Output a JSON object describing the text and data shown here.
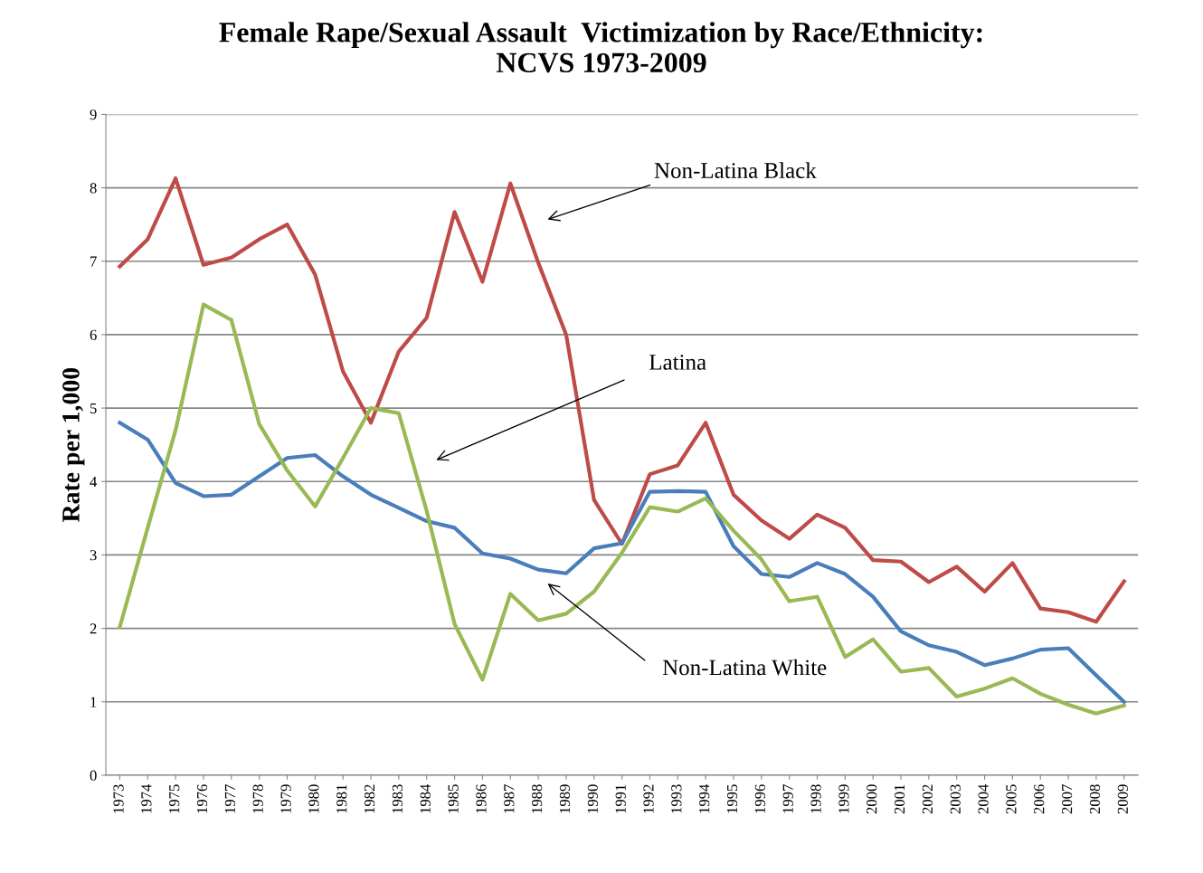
{
  "chart_data": {
    "type": "line",
    "title": "Female Rape/Sexual Assault  Victimization by Race/Ethnicity:\nNCVS 1973-2009",
    "ylabel": "Rate per 1,000",
    "categories": [
      "1973",
      "1974",
      "1975",
      "1976",
      "1977",
      "1978",
      "1979",
      "1980",
      "1981",
      "1982",
      "1983",
      "1984",
      "1985",
      "1986",
      "1987",
      "1988",
      "1989",
      "1990",
      "1991",
      "1992",
      "1993",
      "1994",
      "1995",
      "1996",
      "1997",
      "1998",
      "1999",
      "2000",
      "2001",
      "2002",
      "2003",
      "2004",
      "2005",
      "2006",
      "2007",
      "2008",
      "2009"
    ],
    "series": [
      {
        "color": "#be4b48",
        "values": [
          6.93,
          7.3,
          8.13,
          6.95,
          7.05,
          7.3,
          7.5,
          6.82,
          5.5,
          4.8,
          5.77,
          6.23,
          7.67,
          6.72,
          8.06,
          6.98,
          6.0,
          3.75,
          3.15,
          4.1,
          4.22,
          4.8,
          3.82,
          3.47,
          3.22,
          3.55,
          3.37,
          2.93,
          2.91,
          2.63,
          2.84,
          2.5,
          2.89,
          2.27,
          2.22,
          2.09,
          2.64
        ]
      },
      {
        "color": "#4a7ebb",
        "values": [
          4.8,
          4.57,
          3.98,
          3.8,
          3.82,
          4.07,
          4.32,
          4.36,
          4.07,
          3.82,
          3.64,
          3.46,
          3.37,
          3.02,
          2.95,
          2.8,
          2.75,
          3.09,
          3.16,
          3.86,
          3.87,
          3.86,
          3.12,
          2.74,
          2.7,
          2.89,
          2.74,
          2.43,
          1.96,
          1.77,
          1.68,
          1.5,
          1.59,
          1.71,
          1.73,
          1.36,
          1.0
        ]
      },
      {
        "color": "#98b954",
        "values": [
          2.02,
          3.37,
          4.7,
          6.41,
          6.2,
          4.78,
          4.15,
          3.66,
          4.32,
          5.0,
          4.93,
          3.6,
          2.06,
          1.3,
          2.47,
          2.11,
          2.2,
          2.5,
          3.03,
          3.65,
          3.59,
          3.77,
          3.33,
          2.94,
          2.37,
          2.43,
          1.61,
          1.85,
          1.41,
          1.46,
          1.07,
          1.18,
          1.32,
          1.11,
          0.96,
          0.84,
          0.95
        ]
      }
    ],
    "annotations": [
      "Non-Latina Black",
      "Latina",
      "Non-Latina White"
    ],
    "ylim": [
      0,
      9
    ],
    "yticks": [
      0,
      1,
      2,
      3,
      4,
      5,
      6,
      7,
      8,
      9
    ],
    "grid": "y",
    "marker": "none",
    "line_style": "solid",
    "legend": false
  }
}
